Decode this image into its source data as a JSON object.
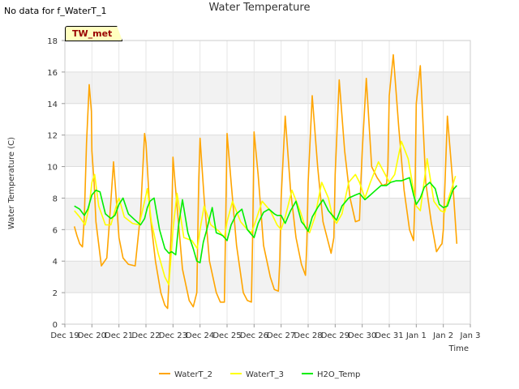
{
  "header": {
    "no_data_text": "No data for f_WaterT_1",
    "badge_text": "TW_met"
  },
  "chart_data": {
    "type": "line",
    "title": "Water Temperature",
    "xlabel": "Time",
    "ylabel": "Water Temperature (C)",
    "xlim": [
      0,
      15
    ],
    "ylim": [
      0,
      18
    ],
    "x_tick_labels": [
      "Dec 19",
      "Dec 20",
      "Dec 21",
      "Dec 22",
      "Dec 23",
      "Dec 24",
      "Dec 25",
      "Dec 26",
      "Dec 27",
      "Dec 28",
      "Dec 29",
      "Dec 30",
      "Dec 31",
      "Jan 1",
      "Jan 2",
      "Jan 3"
    ],
    "y_ticks": [
      0,
      2,
      4,
      6,
      8,
      10,
      12,
      14,
      16,
      18
    ],
    "grid": true,
    "legend_position": "bottom",
    "series": [
      {
        "name": "WaterT_2",
        "color": "#ffa500",
        "x": [
          0.35,
          0.45,
          0.55,
          0.65,
          0.72,
          0.8,
          0.9,
          0.98,
          1.0,
          1.08,
          1.15,
          1.35,
          1.55,
          1.65,
          1.8,
          1.95,
          2.0,
          2.15,
          2.35,
          2.6,
          2.8,
          2.95,
          3.0,
          3.15,
          3.35,
          3.55,
          3.7,
          3.8,
          3.95,
          4.0,
          4.15,
          4.35,
          4.6,
          4.75,
          4.88,
          4.95,
          5.0,
          5.15,
          5.35,
          5.6,
          5.75,
          5.9,
          5.95,
          6.0,
          6.15,
          6.35,
          6.6,
          6.75,
          6.9,
          6.95,
          7.0,
          7.15,
          7.35,
          7.6,
          7.75,
          7.9,
          7.95,
          8.0,
          8.15,
          8.35,
          8.55,
          8.75,
          8.9,
          8.95,
          9.0,
          9.15,
          9.35,
          9.55,
          9.7,
          9.85,
          9.95,
          10.0,
          10.15,
          10.35,
          10.55,
          10.75,
          10.9,
          10.95,
          11.0,
          11.15,
          11.35,
          11.55,
          11.75,
          11.9,
          11.95,
          12.0,
          12.15,
          12.35,
          12.55,
          12.75,
          12.9,
          12.95,
          13.0,
          13.15,
          13.35,
          13.55,
          13.75,
          13.9,
          13.95,
          14.0,
          14.15,
          14.35,
          14.5
        ],
        "y": [
          6.2,
          5.6,
          5.1,
          4.9,
          6.8,
          11.5,
          15.2,
          13.5,
          11.0,
          9.0,
          6.5,
          3.7,
          4.2,
          6.5,
          10.3,
          6.8,
          5.5,
          4.2,
          3.8,
          3.7,
          7.0,
          12.1,
          11.5,
          7.0,
          4.0,
          2.0,
          1.2,
          1.0,
          6.5,
          10.6,
          7.5,
          3.5,
          1.5,
          1.1,
          2.0,
          9.0,
          11.8,
          8.0,
          4.0,
          2.0,
          1.4,
          1.4,
          6.5,
          12.1,
          9.0,
          5.0,
          2.0,
          1.5,
          1.4,
          6.0,
          12.2,
          9.5,
          5.0,
          3.0,
          2.2,
          2.1,
          4.0,
          8.0,
          13.2,
          8.5,
          5.5,
          3.8,
          3.1,
          5.0,
          9.0,
          14.5,
          10.0,
          6.5,
          5.5,
          4.5,
          5.5,
          9.5,
          15.5,
          11.0,
          8.0,
          6.5,
          6.6,
          9.0,
          11.0,
          15.6,
          10.0,
          9.3,
          8.8,
          8.9,
          10.0,
          14.5,
          17.1,
          12.5,
          8.5,
          6.0,
          5.3,
          8.0,
          14.0,
          16.4,
          9.0,
          6.5,
          4.6,
          5.0,
          5.1,
          6.0,
          13.2,
          9.0,
          5.1
        ]
      },
      {
        "name": "WaterT_3",
        "color": "#ffff00",
        "x": [
          0.35,
          0.55,
          0.75,
          0.9,
          1.0,
          1.1,
          1.25,
          1.5,
          1.7,
          1.9,
          2.0,
          2.2,
          2.5,
          2.75,
          2.95,
          3.05,
          3.2,
          3.45,
          3.7,
          3.85,
          4.0,
          4.15,
          4.4,
          4.7,
          4.9,
          5.0,
          5.15,
          5.4,
          5.7,
          5.9,
          6.0,
          6.2,
          6.5,
          6.75,
          6.9,
          7.05,
          7.3,
          7.6,
          7.85,
          8.0,
          8.15,
          8.4,
          8.7,
          8.9,
          9.05,
          9.25,
          9.5,
          9.75,
          9.9,
          10.05,
          10.25,
          10.5,
          10.75,
          10.9,
          11.1,
          11.3,
          11.6,
          11.85,
          12.0,
          12.2,
          12.45,
          12.7,
          12.9,
          13.0,
          13.15,
          13.4,
          13.65,
          13.9,
          14.05,
          14.2,
          14.45
        ],
        "y": [
          7.2,
          6.8,
          6.3,
          7.5,
          9.0,
          9.5,
          7.5,
          6.3,
          6.3,
          7.5,
          8.0,
          6.8,
          6.4,
          6.3,
          7.8,
          8.6,
          6.5,
          4.5,
          3.0,
          2.5,
          6.0,
          8.3,
          5.5,
          5.3,
          4.8,
          6.0,
          7.5,
          6.3,
          5.9,
          5.5,
          6.5,
          7.8,
          6.5,
          6.0,
          5.8,
          6.5,
          7.8,
          7.2,
          6.3,
          6.0,
          6.8,
          8.5,
          7.2,
          6.1,
          5.8,
          6.8,
          9.0,
          8.0,
          6.8,
          6.4,
          7.0,
          9.0,
          9.5,
          9.0,
          8.0,
          9.0,
          10.3,
          9.5,
          9.0,
          9.5,
          11.6,
          10.5,
          8.5,
          7.5,
          7.2,
          10.5,
          7.8,
          7.2,
          7.1,
          8.0,
          9.4
        ]
      },
      {
        "name": "H2O_Temp",
        "color": "#00ee00",
        "x": [
          0.35,
          0.55,
          0.72,
          0.85,
          1.0,
          1.15,
          1.3,
          1.5,
          1.7,
          1.85,
          2.0,
          2.15,
          2.35,
          2.6,
          2.8,
          2.95,
          3.05,
          3.15,
          3.3,
          3.5,
          3.7,
          3.85,
          3.95,
          4.1,
          4.2,
          4.35,
          4.55,
          4.75,
          4.88,
          5.0,
          5.12,
          5.25,
          5.45,
          5.6,
          5.75,
          5.85,
          6.0,
          6.15,
          6.35,
          6.55,
          6.75,
          6.85,
          7.0,
          7.15,
          7.35,
          7.55,
          7.75,
          7.85,
          8.0,
          8.15,
          8.35,
          8.55,
          8.75,
          8.85,
          9.0,
          9.15,
          9.35,
          9.55,
          9.75,
          9.9,
          10.05,
          10.25,
          10.5,
          10.75,
          10.9,
          11.1,
          11.3,
          11.5,
          11.7,
          11.9,
          12.05,
          12.25,
          12.45,
          12.6,
          12.75,
          12.9,
          13.0,
          13.15,
          13.3,
          13.5,
          13.7,
          13.85,
          14.0,
          14.15,
          14.35,
          14.5
        ],
        "y": [
          7.5,
          7.3,
          6.9,
          7.3,
          8.2,
          8.5,
          8.4,
          7.0,
          6.7,
          6.9,
          7.6,
          8.0,
          7.0,
          6.6,
          6.3,
          6.7,
          7.4,
          7.8,
          8.0,
          6.0,
          4.8,
          4.5,
          4.6,
          4.4,
          6.2,
          7.9,
          5.8,
          4.8,
          4.0,
          3.9,
          5.2,
          6.0,
          7.4,
          5.8,
          5.7,
          5.6,
          5.3,
          6.3,
          7.0,
          7.3,
          6.0,
          5.8,
          5.5,
          6.4,
          7.1,
          7.3,
          7.0,
          6.9,
          6.9,
          6.4,
          7.2,
          7.8,
          6.5,
          6.3,
          5.9,
          6.8,
          7.4,
          7.9,
          7.2,
          6.9,
          6.6,
          7.5,
          8.0,
          8.2,
          8.3,
          7.9,
          8.2,
          8.5,
          8.8,
          8.8,
          9.0,
          9.1,
          9.1,
          9.2,
          9.3,
          8.2,
          7.6,
          8.0,
          8.7,
          9.0,
          8.6,
          7.6,
          7.4,
          7.5,
          8.5,
          8.8
        ]
      }
    ]
  }
}
